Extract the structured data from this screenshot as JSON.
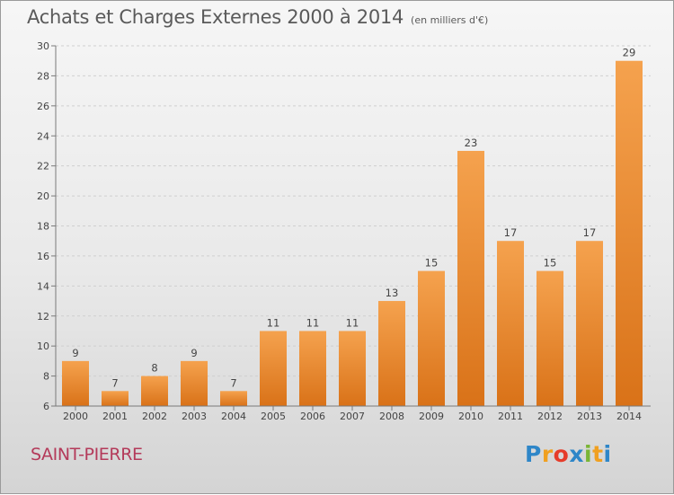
{
  "chart_title": "Achats et Charges Externes 2000 à 2014",
  "chart_unit": "(en milliers d'€)",
  "town_label": "SAINT-PIERRE",
  "logo": {
    "text": "Proxiti",
    "letter_colors": [
      "#2e86c8",
      "#f0a020",
      "#e63c2a",
      "#2e86c8",
      "#7ab536",
      "#f0a020",
      "#2e86c8"
    ]
  },
  "colors": {
    "bar_top": "#f5a24e",
    "bar_bottom": "#d97218",
    "axis": "#7a7a7a",
    "grid": "#cfcfcf",
    "text": "#444444",
    "town": "#b43a5a"
  },
  "chart_data": {
    "type": "bar",
    "title": "Achats et Charges Externes 2000 à 2014",
    "subtitle": "(en milliers d'€)",
    "xlabel": "",
    "ylabel": "",
    "categories": [
      "2000",
      "2001",
      "2002",
      "2003",
      "2004",
      "2005",
      "2006",
      "2007",
      "2008",
      "2009",
      "2010",
      "2011",
      "2012",
      "2013",
      "2014"
    ],
    "values": [
      9,
      7,
      8,
      9,
      7,
      11,
      11,
      11,
      13,
      15,
      23,
      17,
      15,
      17,
      29
    ],
    "value_labels": [
      "9",
      "7",
      "8",
      "9",
      "7",
      "11",
      "11",
      "11",
      "13",
      "15",
      "23",
      "17",
      "15",
      "17",
      "29"
    ],
    "ylim": [
      6,
      30
    ],
    "yticks": [
      6,
      8,
      10,
      12,
      14,
      16,
      18,
      20,
      22,
      24,
      26,
      28,
      30
    ],
    "ytick_labels": [
      "6",
      "8",
      "10",
      "12",
      "14",
      "16",
      "18",
      "20",
      "22",
      "24",
      "26",
      "28",
      "30"
    ],
    "grid": true,
    "legend": "none"
  }
}
